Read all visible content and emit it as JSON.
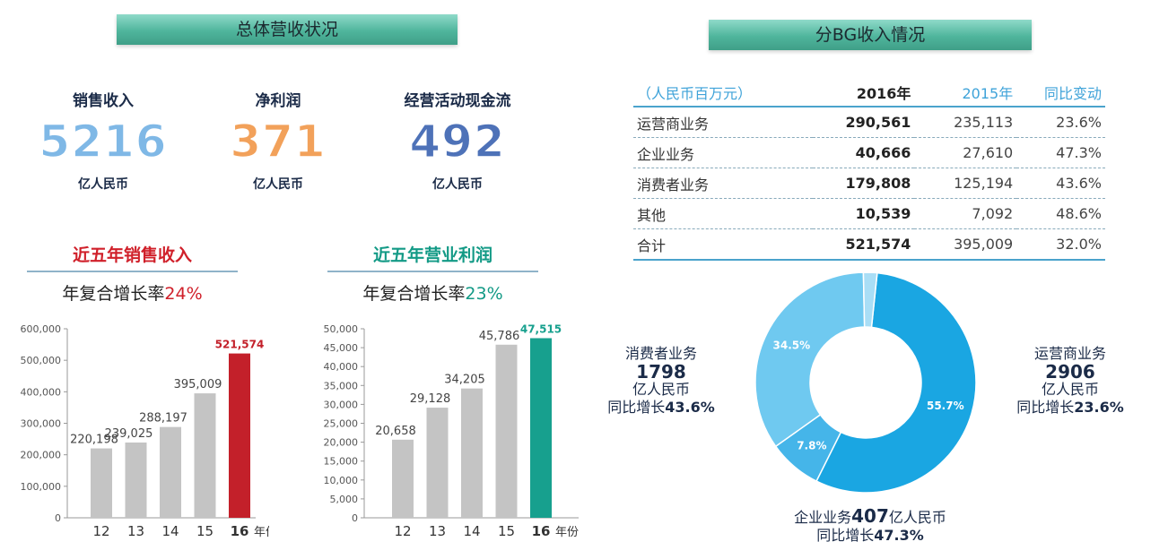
{
  "left": {
    "banner": "总体营收状况",
    "kpis": [
      {
        "label": "销售收入",
        "value": "5216",
        "unit": "亿人民币",
        "color": "#7fb8e6"
      },
      {
        "label": "净利润",
        "value": "371",
        "unit": "亿人民币",
        "color": "#f2a15a"
      },
      {
        "label": "经营活动现金流",
        "value": "492",
        "unit": "亿人民币",
        "color": "#4e72b8"
      }
    ],
    "revenue_title": "近五年销售收入",
    "revenue_cagr_prefix": "年复合增长率",
    "revenue_cagr_value": "24%",
    "profit_title": "近五年营业利润",
    "profit_cagr_prefix": "年复合增长率",
    "profit_cagr_value": "23%",
    "year_unit": "年份"
  },
  "right": {
    "banner": "分BG收入情况",
    "table": {
      "headers": [
        "（人民币百万元）",
        "2016年",
        "2015年",
        "同比变动"
      ],
      "rows": [
        [
          "运营商业务",
          "290,561",
          "235,113",
          "23.6%"
        ],
        [
          "企业业务",
          "40,666",
          "27,610",
          "47.3%"
        ],
        [
          "消费者业务",
          "179,808",
          "125,194",
          "43.6%"
        ],
        [
          "其他",
          "10,539",
          "7,092",
          "48.6%"
        ],
        [
          "合计",
          "521,574",
          "395,009",
          "32.0%"
        ]
      ]
    },
    "consumer": {
      "name": "消费者业务",
      "value": "1798",
      "unit": "亿人民币",
      "growth_prefix": "同比增长",
      "growth": "43.6%"
    },
    "carrier": {
      "name": "运营商业务",
      "value": "2906",
      "unit": "亿人民币",
      "growth_prefix": "同比增长",
      "growth": "23.6%"
    },
    "enterprise": {
      "name": "企业业务",
      "value": "407",
      "unit": "亿人民币",
      "growth_prefix": "同比增长",
      "growth": "47.3%"
    }
  },
  "chart_data": [
    {
      "type": "bar",
      "title": "近五年销售收入",
      "categories": [
        "12",
        "13",
        "14",
        "15",
        "16"
      ],
      "values": [
        220198,
        239025,
        288197,
        395009,
        521574
      ],
      "value_labels": [
        "220,198",
        "239,025",
        "288,197",
        "395,009",
        "521,574"
      ],
      "ylim": [
        0,
        600000
      ],
      "yticks": [
        "0",
        "100,000",
        "200,000",
        "300,000",
        "400,000",
        "500,000",
        "600,000"
      ],
      "bar_color": "#c4c4c4",
      "highlight_color": "#c3202a",
      "xlabel": "年份"
    },
    {
      "type": "bar",
      "title": "近五年营业利润",
      "categories": [
        "12",
        "13",
        "14",
        "15",
        "16"
      ],
      "values": [
        20658,
        29128,
        34205,
        45786,
        47515
      ],
      "value_labels": [
        "20,658",
        "29,128",
        "34,205",
        "45,786",
        "47,515"
      ],
      "ylim": [
        0,
        50000
      ],
      "yticks": [
        "0",
        "5,000",
        "10,000",
        "15,000",
        "20,000",
        "25,000",
        "30,000",
        "35,000",
        "40,000",
        "45,000",
        "50,000"
      ],
      "bar_color": "#c4c4c4",
      "highlight_color": "#17a08e",
      "xlabel": "年份"
    },
    {
      "type": "pie",
      "slices": [
        {
          "label": "55.7%",
          "value": 55.7,
          "color": "#1aa6e2"
        },
        {
          "label": "7.8%",
          "value": 7.8,
          "color": "#45b5e9"
        },
        {
          "label": "34.5%",
          "value": 34.5,
          "color": "#6fc9f0"
        },
        {
          "value": 2.0,
          "color": "#a9def6"
        }
      ]
    }
  ]
}
